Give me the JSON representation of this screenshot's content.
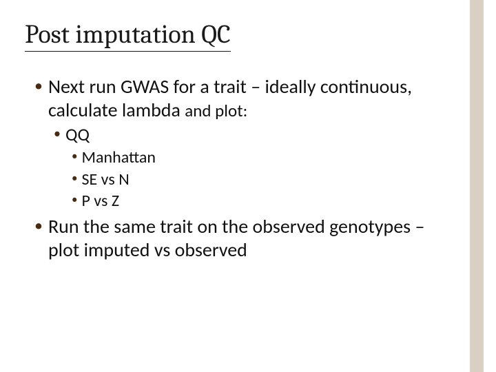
{
  "colors": {
    "accent_bar": "#d9d0c3",
    "bullet": "#4a2a10",
    "text": "#111111",
    "title_underline": "#1a1a1a",
    "background": "#ffffff"
  },
  "typography": {
    "title_font": "Cambria",
    "body_font": "Calibri",
    "title_size_pt": 38,
    "l1_size_pt": 28,
    "l2_size_pt": 26,
    "l3_size_pt": 24
  },
  "title": "Post imputation QC",
  "bullets": {
    "b1_pre": "Next run GWAS for a trait – ideally continuous, calculate lambda ",
    "b1_small": "and plot:",
    "b1_sub1": "QQ",
    "b1_sub2": "Manhattan",
    "b1_sub3": "SE vs N",
    "b1_sub4": "P vs Z",
    "b2": "Run the same trait on the observed genotypes – plot imputed vs observed"
  }
}
